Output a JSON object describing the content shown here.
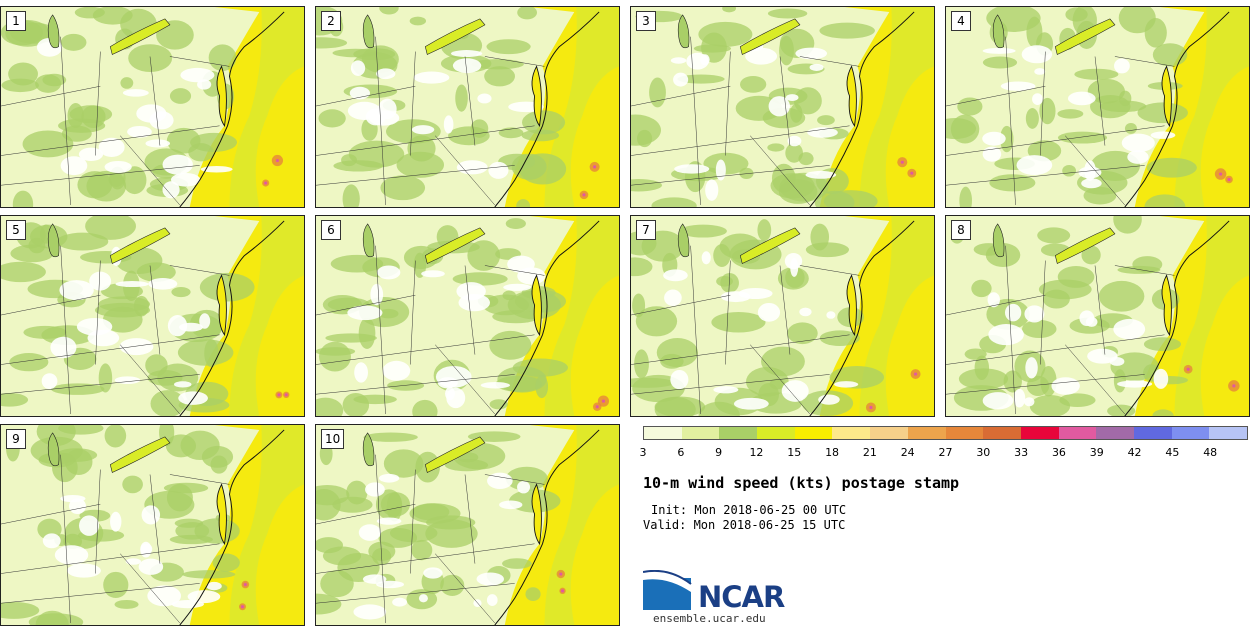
{
  "panels": [
    {
      "label": "1"
    },
    {
      "label": "2"
    },
    {
      "label": "3"
    },
    {
      "label": "4"
    },
    {
      "label": "5"
    },
    {
      "label": "6"
    },
    {
      "label": "7"
    },
    {
      "label": "8"
    },
    {
      "label": "9"
    },
    {
      "label": "10"
    }
  ],
  "colorbar": {
    "colors": [
      "#f5fadc",
      "#e2f0a0",
      "#a9cf67",
      "#d9ec27",
      "#f9ee00",
      "#fde98a",
      "#f6d08a",
      "#eda44c",
      "#e6873a",
      "#d96c34",
      "#e8053a",
      "#e15aa0",
      "#a26aa8",
      "#6069e0",
      "#7e8ff0",
      "#b7c4f5"
    ],
    "ticks": [
      "3",
      "6",
      "9",
      "12",
      "15",
      "18",
      "21",
      "24",
      "27",
      "30",
      "33",
      "36",
      "39",
      "42",
      "45",
      "48"
    ]
  },
  "title": "10-m wind speed (kts) postage stamp",
  "init": "Init: Mon 2018-06-25 00 UTC",
  "valid": "Valid: Mon 2018-06-25 15 UTC",
  "logo": {
    "text": "NCAR",
    "color": "#1b3f85",
    "accent": "#1a6fb8"
  },
  "site": "ensemble.ucar.edu"
}
